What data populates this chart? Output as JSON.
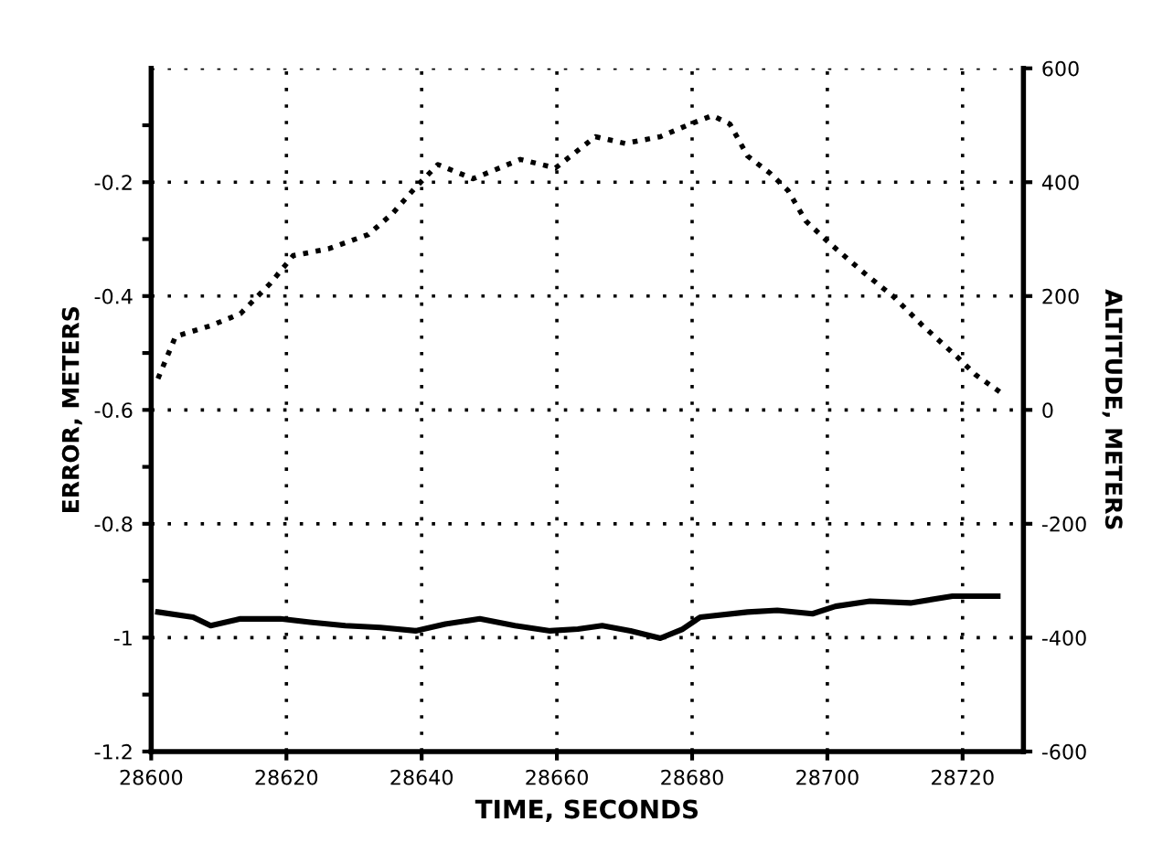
{
  "chart_data": {
    "type": "line",
    "xlabel": "TIME, SECONDS",
    "ylabel": "ERROR, METERS",
    "y2label": "ALTITUDE, METERS",
    "xlim": [
      28600,
      28729
    ],
    "xticks": [
      28600,
      28620,
      28640,
      28660,
      28680,
      28700,
      28720
    ],
    "ylim": [
      -1.2,
      0
    ],
    "yticks": [
      -1.2,
      {
        "value": -1.1,
        "label": null
      },
      -1,
      {
        "value": -0.9,
        "label": null
      },
      -0.8,
      {
        "value": -0.7,
        "label": null
      },
      -0.6,
      {
        "value": -0.5,
        "label": null
      },
      -0.4,
      {
        "value": -0.3,
        "label": null
      },
      -0.2,
      {
        "value": -0.1,
        "label": null
      }
    ],
    "y2lim": [
      -600,
      600
    ],
    "y2ticks": [
      -600,
      -400,
      -200,
      0,
      200,
      400,
      600
    ],
    "grid": true,
    "marker": "none",
    "series": [
      {
        "color": "#000000",
        "line_style": "solid",
        "x": [
          28601.0,
          28606.2,
          28608.8,
          28613.2,
          28619.1,
          28623.5,
          28628.7,
          28633.9,
          28639.1,
          28643.5,
          28648.6,
          28653.8,
          28659.0,
          28663.1,
          28666.7,
          28670.9,
          28675.3,
          28678.6,
          28681.2,
          28688.2,
          28692.6,
          28697.8,
          28701.2,
          28706.3,
          28712.3,
          28718.5,
          28725.2
        ],
        "values": [
          -0.955,
          -0.964,
          -0.979,
          -0.967,
          -0.967,
          -0.973,
          -0.979,
          -0.982,
          -0.988,
          -0.976,
          -0.967,
          -0.979,
          -0.988,
          -0.985,
          -0.979,
          -0.988,
          -1.001,
          -0.985,
          -0.964,
          -0.955,
          -0.952,
          -0.958,
          -0.945,
          -0.936,
          -0.939,
          -0.927,
          -0.927
        ]
      },
      {
        "color": "#000000",
        "line_style": "dotted",
        "axis": "y2",
        "x": [
          28601.0,
          28603.6,
          28608.8,
          28613.2,
          28617.6,
          28621.0,
          28626.2,
          28632.1,
          28635.7,
          28639.1,
          28642.4,
          28647.6,
          28654.6,
          28659.8,
          28665.7,
          28670.1,
          28675.3,
          28679.7,
          28683.0,
          28685.6,
          28688.2,
          28691.6,
          28694.2,
          28696.8,
          28700.4,
          28705.5,
          28709.7,
          28714.1,
          28719.3,
          28721.9,
          28726.3
        ],
        "values": [
          55,
          129,
          148,
          169,
          222,
          271,
          283,
          308,
          345,
          391,
          431,
          406,
          440,
          425,
          480,
          468,
          480,
          502,
          517,
          502,
          446,
          415,
          385,
          332,
          292,
          240,
          200,
          148,
          92,
          62,
          25
        ]
      }
    ]
  }
}
